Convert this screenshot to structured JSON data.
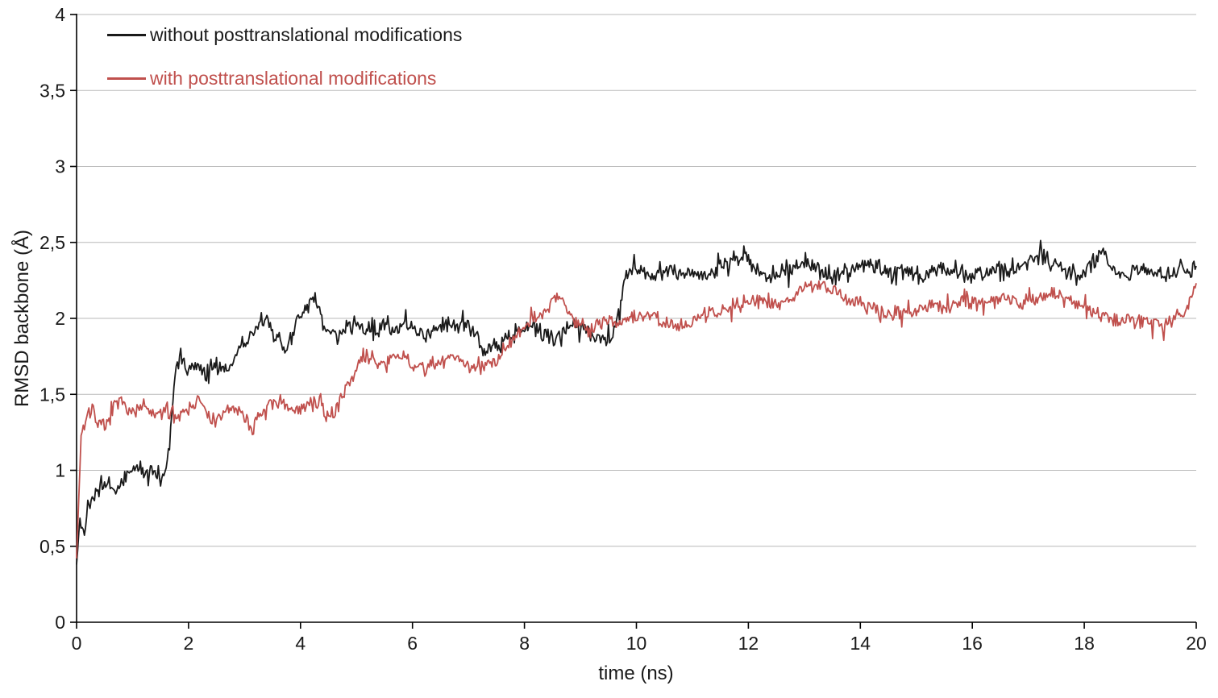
{
  "chart_data": {
    "type": "line",
    "title": "",
    "xlabel": "time (ns)",
    "ylabel": "RMSD backbone (Å)",
    "xlim": [
      0,
      20
    ],
    "ylim": [
      0,
      4
    ],
    "x_ticks": [
      0,
      2,
      4,
      6,
      8,
      10,
      12,
      14,
      16,
      18,
      20
    ],
    "x_tick_labels": [
      "0",
      "2",
      "4",
      "6",
      "8",
      "10",
      "12",
      "14",
      "16",
      "18",
      "20"
    ],
    "y_ticks": [
      0,
      0.5,
      1,
      1.5,
      2,
      2.5,
      3,
      3.5,
      4
    ],
    "y_tick_labels": [
      "0",
      "0,5",
      "1",
      "1,5",
      "2",
      "2,5",
      "3",
      "3,5",
      "4"
    ],
    "grid": "horizontal-only",
    "grid_color": "#b9b9b9",
    "axis_color": "#000000",
    "legend_position": "top-left-inside",
    "series": [
      {
        "name": "without posttranslational modifications",
        "color": "#1a1a1a",
        "line_width": 1.8,
        "noise_amplitude": 0.07,
        "seed": 42,
        "keypoints": [
          [
            0,
            0.38
          ],
          [
            0.06,
            0.68
          ],
          [
            0.12,
            0.57
          ],
          [
            0.2,
            0.78
          ],
          [
            0.35,
            0.86
          ],
          [
            0.55,
            0.9
          ],
          [
            0.75,
            0.86
          ],
          [
            0.95,
            1.0
          ],
          [
            1.1,
            1.04
          ],
          [
            1.25,
            0.95
          ],
          [
            1.4,
            1.0
          ],
          [
            1.55,
            0.93
          ],
          [
            1.65,
            1.15
          ],
          [
            1.75,
            1.6
          ],
          [
            1.85,
            1.78
          ],
          [
            1.95,
            1.63
          ],
          [
            2.1,
            1.68
          ],
          [
            2.3,
            1.65
          ],
          [
            2.5,
            1.7
          ],
          [
            2.7,
            1.64
          ],
          [
            2.9,
            1.8
          ],
          [
            3.1,
            1.88
          ],
          [
            3.3,
            2.0
          ],
          [
            3.45,
            1.93
          ],
          [
            3.6,
            1.84
          ],
          [
            3.75,
            1.78
          ],
          [
            3.9,
            1.97
          ],
          [
            4.1,
            2.05
          ],
          [
            4.25,
            2.14
          ],
          [
            4.4,
            1.98
          ],
          [
            4.55,
            1.9
          ],
          [
            4.7,
            1.88
          ],
          [
            4.9,
            1.97
          ],
          [
            5.1,
            1.95
          ],
          [
            5.3,
            1.9
          ],
          [
            5.5,
            1.95
          ],
          [
            5.7,
            1.92
          ],
          [
            5.9,
            1.97
          ],
          [
            6.1,
            1.9
          ],
          [
            6.3,
            1.88
          ],
          [
            6.5,
            1.94
          ],
          [
            6.7,
            1.95
          ],
          [
            6.9,
            1.97
          ],
          [
            7.1,
            1.89
          ],
          [
            7.3,
            1.78
          ],
          [
            7.5,
            1.83
          ],
          [
            7.7,
            1.88
          ],
          [
            7.9,
            1.92
          ],
          [
            8.1,
            1.95
          ],
          [
            8.3,
            1.9
          ],
          [
            8.5,
            1.88
          ],
          [
            8.7,
            1.93
          ],
          [
            8.9,
            1.96
          ],
          [
            9.1,
            1.92
          ],
          [
            9.3,
            1.88
          ],
          [
            9.5,
            1.86
          ],
          [
            9.65,
            1.97
          ],
          [
            9.8,
            2.28
          ],
          [
            10,
            2.33
          ],
          [
            10.3,
            2.28
          ],
          [
            10.6,
            2.32
          ],
          [
            10.9,
            2.3
          ],
          [
            11.2,
            2.28
          ],
          [
            11.5,
            2.34
          ],
          [
            11.8,
            2.4
          ],
          [
            11.95,
            2.44
          ],
          [
            12.1,
            2.32
          ],
          [
            12.4,
            2.28
          ],
          [
            12.7,
            2.32
          ],
          [
            13,
            2.35
          ],
          [
            13.3,
            2.3
          ],
          [
            13.6,
            2.28
          ],
          [
            13.9,
            2.32
          ],
          [
            14.2,
            2.35
          ],
          [
            14.5,
            2.3
          ],
          [
            14.8,
            2.32
          ],
          [
            15.1,
            2.28
          ],
          [
            15.4,
            2.33
          ],
          [
            15.7,
            2.3
          ],
          [
            16,
            2.28
          ],
          [
            16.3,
            2.3
          ],
          [
            16.6,
            2.32
          ],
          [
            16.9,
            2.35
          ],
          [
            17.2,
            2.42
          ],
          [
            17.4,
            2.37
          ],
          [
            17.6,
            2.31
          ],
          [
            17.9,
            2.28
          ],
          [
            18.2,
            2.38
          ],
          [
            18.35,
            2.44
          ],
          [
            18.5,
            2.3
          ],
          [
            18.8,
            2.28
          ],
          [
            19.1,
            2.32
          ],
          [
            19.4,
            2.28
          ],
          [
            19.7,
            2.3
          ],
          [
            20,
            2.34
          ]
        ]
      },
      {
        "name": "with posttranslational modifications",
        "color": "#c0504d",
        "line_width": 1.8,
        "noise_amplitude": 0.06,
        "seed": 7,
        "keypoints": [
          [
            0,
            0.42
          ],
          [
            0.08,
            1.24
          ],
          [
            0.18,
            1.35
          ],
          [
            0.28,
            1.42
          ],
          [
            0.4,
            1.3
          ],
          [
            0.52,
            1.27
          ],
          [
            0.68,
            1.42
          ],
          [
            0.85,
            1.45
          ],
          [
            1,
            1.38
          ],
          [
            1.2,
            1.42
          ],
          [
            1.4,
            1.35
          ],
          [
            1.6,
            1.4
          ],
          [
            1.8,
            1.36
          ],
          [
            2,
            1.42
          ],
          [
            2.2,
            1.46
          ],
          [
            2.4,
            1.32
          ],
          [
            2.6,
            1.35
          ],
          [
            2.8,
            1.42
          ],
          [
            3,
            1.36
          ],
          [
            3.15,
            1.27
          ],
          [
            3.3,
            1.38
          ],
          [
            3.5,
            1.42
          ],
          [
            3.7,
            1.45
          ],
          [
            3.9,
            1.4
          ],
          [
            4.1,
            1.42
          ],
          [
            4.3,
            1.45
          ],
          [
            4.5,
            1.34
          ],
          [
            4.65,
            1.42
          ],
          [
            4.8,
            1.54
          ],
          [
            5,
            1.68
          ],
          [
            5.2,
            1.75
          ],
          [
            5.4,
            1.7
          ],
          [
            5.6,
            1.72
          ],
          [
            5.8,
            1.75
          ],
          [
            6,
            1.7
          ],
          [
            6.2,
            1.66
          ],
          [
            6.4,
            1.7
          ],
          [
            6.6,
            1.73
          ],
          [
            6.8,
            1.75
          ],
          [
            7,
            1.7
          ],
          [
            7.2,
            1.66
          ],
          [
            7.4,
            1.7
          ],
          [
            7.6,
            1.78
          ],
          [
            7.8,
            1.88
          ],
          [
            8,
            1.95
          ],
          [
            8.2,
            2.0
          ],
          [
            8.4,
            2.05
          ],
          [
            8.6,
            2.17
          ],
          [
            8.75,
            2.08
          ],
          [
            8.9,
            1.98
          ],
          [
            9.1,
            1.95
          ],
          [
            9.3,
            1.96
          ],
          [
            9.5,
            2.0
          ],
          [
            9.7,
            1.96
          ],
          [
            9.9,
            2.0
          ],
          [
            10.2,
            2.02
          ],
          [
            10.5,
            1.98
          ],
          [
            10.8,
            1.96
          ],
          [
            11.1,
            2.0
          ],
          [
            11.4,
            2.04
          ],
          [
            11.7,
            2.08
          ],
          [
            12,
            2.1
          ],
          [
            12.3,
            2.12
          ],
          [
            12.6,
            2.1
          ],
          [
            12.9,
            2.18
          ],
          [
            13.2,
            2.22
          ],
          [
            13.5,
            2.18
          ],
          [
            13.8,
            2.12
          ],
          [
            14.1,
            2.08
          ],
          [
            14.4,
            2.02
          ],
          [
            14.7,
            2.05
          ],
          [
            15,
            2.06
          ],
          [
            15.3,
            2.1
          ],
          [
            15.6,
            2.08
          ],
          [
            15.9,
            2.12
          ],
          [
            16.2,
            2.1
          ],
          [
            16.5,
            2.14
          ],
          [
            16.8,
            2.1
          ],
          [
            17.1,
            2.12
          ],
          [
            17.4,
            2.18
          ],
          [
            17.7,
            2.12
          ],
          [
            18,
            2.07
          ],
          [
            18.3,
            2.02
          ],
          [
            18.6,
            1.98
          ],
          [
            18.9,
            2.0
          ],
          [
            19.2,
            1.98
          ],
          [
            19.5,
            1.96
          ],
          [
            19.8,
            2.05
          ],
          [
            20,
            2.2
          ]
        ]
      }
    ]
  }
}
